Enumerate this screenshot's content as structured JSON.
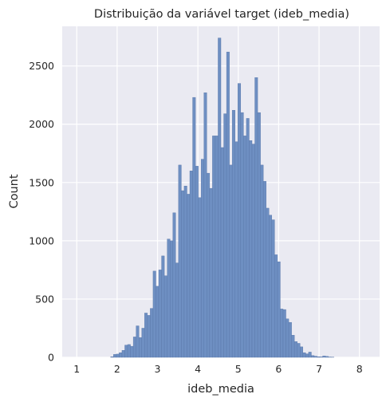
{
  "chart_data": {
    "type": "bar",
    "title": "Distribuição da variável target (ideb_media)",
    "xlabel": "ideb_media",
    "ylabel": "Count",
    "xlim": [
      0.64,
      8.5
    ],
    "ylim": [
      0,
      2840
    ],
    "xticks": [
      1,
      2,
      3,
      4,
      5,
      6,
      7,
      8
    ],
    "yticks": [
      0,
      500,
      1000,
      1500,
      2000,
      2500
    ],
    "grid": true,
    "background": "#eaeaf2",
    "bar_color": "#6e8fc2",
    "bin_width": 0.07,
    "bins": [
      [
        1.0,
        0
      ],
      [
        1.07,
        0
      ],
      [
        1.14,
        0
      ],
      [
        1.21,
        0
      ],
      [
        1.28,
        0
      ],
      [
        1.35,
        0
      ],
      [
        1.42,
        0
      ],
      [
        1.49,
        0
      ],
      [
        1.56,
        0
      ],
      [
        1.63,
        0
      ],
      [
        1.7,
        0
      ],
      [
        1.77,
        0
      ],
      [
        1.84,
        5
      ],
      [
        1.91,
        25
      ],
      [
        1.98,
        28
      ],
      [
        2.05,
        40
      ],
      [
        2.12,
        60
      ],
      [
        2.19,
        105
      ],
      [
        2.26,
        110
      ],
      [
        2.33,
        95
      ],
      [
        2.4,
        175
      ],
      [
        2.47,
        270
      ],
      [
        2.54,
        170
      ],
      [
        2.61,
        250
      ],
      [
        2.68,
        380
      ],
      [
        2.75,
        360
      ],
      [
        2.82,
        420
      ],
      [
        2.89,
        740
      ],
      [
        2.96,
        610
      ],
      [
        3.03,
        750
      ],
      [
        3.1,
        870
      ],
      [
        3.17,
        700
      ],
      [
        3.24,
        1015
      ],
      [
        3.31,
        1000
      ],
      [
        3.38,
        1240
      ],
      [
        3.45,
        810
      ],
      [
        3.52,
        1650
      ],
      [
        3.59,
        1430
      ],
      [
        3.66,
        1470
      ],
      [
        3.73,
        1400
      ],
      [
        3.8,
        1600
      ],
      [
        3.87,
        2230
      ],
      [
        3.94,
        1640
      ],
      [
        4.01,
        1370
      ],
      [
        4.08,
        1700
      ],
      [
        4.15,
        2270
      ],
      [
        4.22,
        1580
      ],
      [
        4.29,
        1450
      ],
      [
        4.36,
        1900
      ],
      [
        4.43,
        1900
      ],
      [
        4.5,
        2740
      ],
      [
        4.57,
        1800
      ],
      [
        4.64,
        2090
      ],
      [
        4.71,
        2620
      ],
      [
        4.78,
        1650
      ],
      [
        4.85,
        2120
      ],
      [
        4.92,
        1850
      ],
      [
        4.99,
        2350
      ],
      [
        5.06,
        2100
      ],
      [
        5.13,
        1900
      ],
      [
        5.2,
        2050
      ],
      [
        5.27,
        1860
      ],
      [
        5.34,
        1830
      ],
      [
        5.41,
        2400
      ],
      [
        5.48,
        2100
      ],
      [
        5.55,
        1650
      ],
      [
        5.62,
        1510
      ],
      [
        5.69,
        1280
      ],
      [
        5.76,
        1220
      ],
      [
        5.83,
        1180
      ],
      [
        5.9,
        880
      ],
      [
        5.97,
        820
      ],
      [
        6.04,
        415
      ],
      [
        6.11,
        410
      ],
      [
        6.18,
        330
      ],
      [
        6.25,
        300
      ],
      [
        6.32,
        190
      ],
      [
        6.39,
        135
      ],
      [
        6.46,
        120
      ],
      [
        6.53,
        90
      ],
      [
        6.6,
        40
      ],
      [
        6.67,
        30
      ],
      [
        6.74,
        45
      ],
      [
        6.81,
        15
      ],
      [
        6.88,
        10
      ],
      [
        6.95,
        5
      ],
      [
        7.02,
        4
      ],
      [
        7.09,
        12
      ],
      [
        7.16,
        8
      ],
      [
        7.23,
        3
      ],
      [
        7.3,
        2
      ],
      [
        7.37,
        0
      ],
      [
        7.44,
        0
      ],
      [
        7.51,
        0
      ],
      [
        7.58,
        0
      ],
      [
        7.65,
        0
      ],
      [
        7.72,
        0
      ],
      [
        7.79,
        0
      ],
      [
        7.86,
        0
      ],
      [
        7.93,
        0
      ],
      [
        8.0,
        0
      ],
      [
        8.07,
        0
      ],
      [
        8.14,
        0
      ]
    ]
  }
}
